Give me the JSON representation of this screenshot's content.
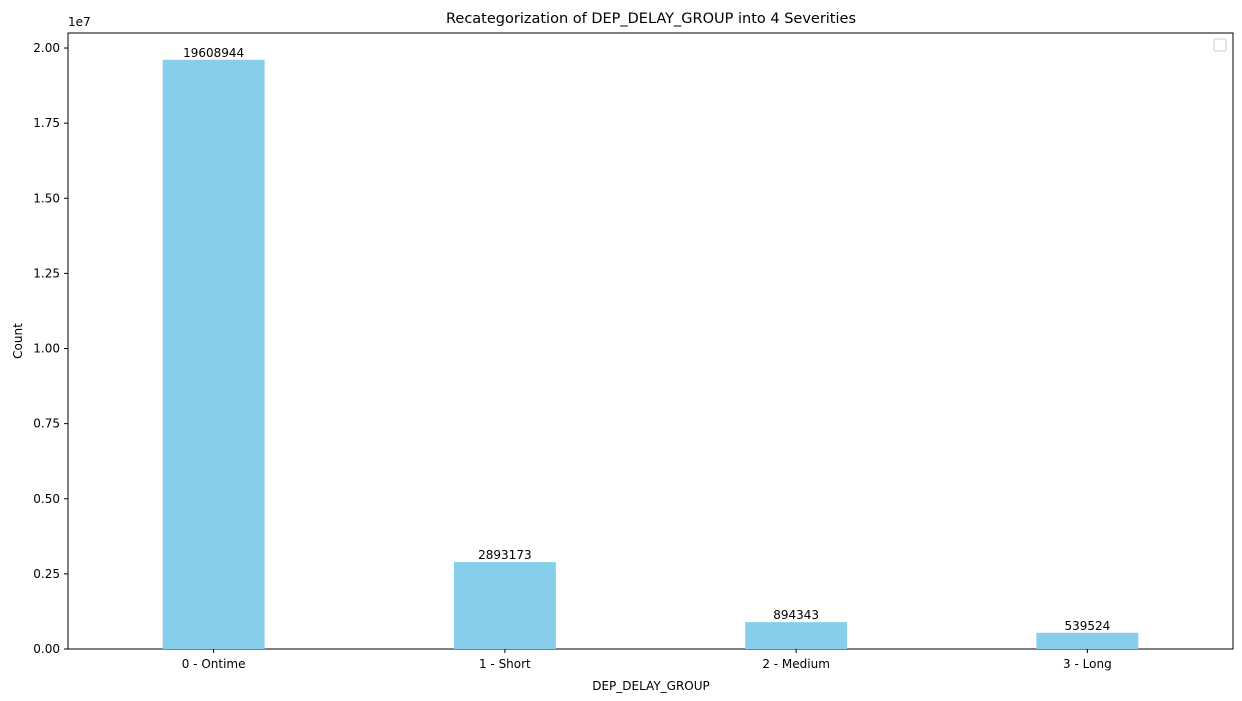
{
  "chart_data": {
    "type": "bar",
    "title": "Recategorization of DEP_DELAY_GROUP into 4 Severities",
    "xlabel": "DEP_DELAY_GROUP",
    "ylabel": "Count",
    "categories": [
      "0 - Ontime",
      "1 - Short",
      "2 - Medium",
      "3 - Long"
    ],
    "values": [
      19608944,
      2893173,
      894343,
      539524
    ],
    "data_labels": [
      "19608944",
      "2893173",
      "894343",
      "539524"
    ],
    "ylim": [
      0,
      20500000
    ],
    "yticks": [
      0,
      2500000,
      5000000,
      7500000,
      10000000,
      12500000,
      15000000,
      17500000,
      20000000
    ],
    "ytick_labels": [
      "0.00",
      "0.25",
      "0.50",
      "0.75",
      "1.00",
      "1.25",
      "1.50",
      "1.75",
      "2.00"
    ],
    "y_offset_label": "1e7",
    "bar_color": "#87ceeb",
    "grid": false,
    "legend": {
      "placement": "top-right",
      "entries": []
    }
  }
}
